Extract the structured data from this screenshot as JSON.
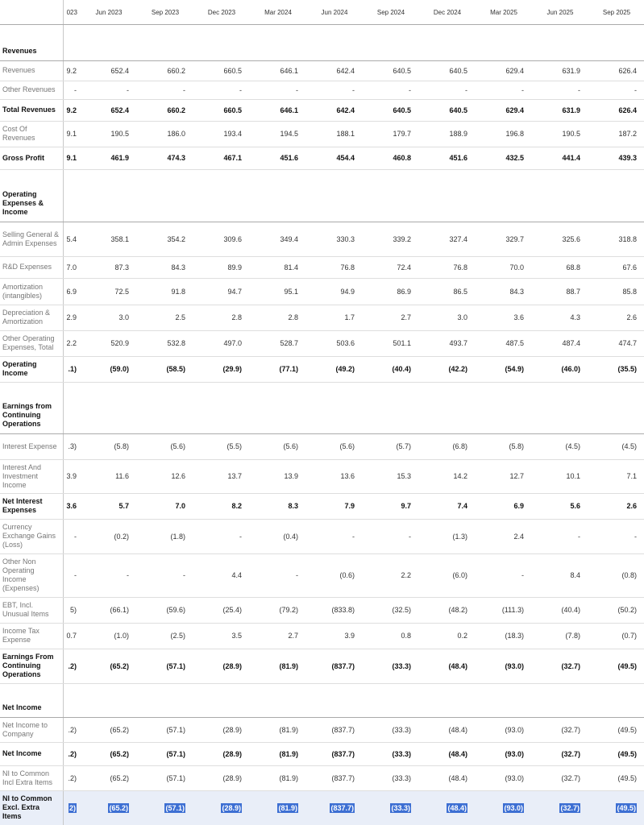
{
  "columns": [
    "023",
    "Jun 2023",
    "Sep 2023",
    "Dec 2023",
    "Mar 2024",
    "Jun 2024",
    "Sep 2024",
    "Dec 2024",
    "Mar 2025",
    "Jun 2025",
    "Sep 2025"
  ],
  "sections": [
    {
      "title": "Revenues",
      "rows": [
        {
          "label": "Revenues",
          "values": [
            "9.2",
            "652.4",
            "660.2",
            "660.5",
            "646.1",
            "642.4",
            "640.5",
            "640.5",
            "629.4",
            "631.9",
            "626.4"
          ]
        },
        {
          "label": "Other Revenues",
          "values": [
            "-",
            "-",
            "-",
            "-",
            "-",
            "-",
            "-",
            "-",
            "-",
            "-",
            "-"
          ]
        },
        {
          "label": "Total Revenues",
          "bold": true,
          "values": [
            "9.2",
            "652.4",
            "660.2",
            "660.5",
            "646.1",
            "642.4",
            "640.5",
            "640.5",
            "629.4",
            "631.9",
            "626.4"
          ]
        },
        {
          "label": "Cost Of Revenues",
          "values": [
            "9.1",
            "190.5",
            "186.0",
            "193.4",
            "194.5",
            "188.1",
            "179.7",
            "188.9",
            "196.8",
            "190.5",
            "187.2"
          ]
        },
        {
          "label": "Gross Profit",
          "bold": true,
          "values": [
            "9.1",
            "461.9",
            "474.3",
            "467.1",
            "451.6",
            "454.4",
            "460.8",
            "451.6",
            "432.5",
            "441.4",
            "439.3"
          ]
        }
      ]
    },
    {
      "title": "Operating Expenses & Income",
      "rows": [
        {
          "label": "Selling General & Admin Expenses",
          "values": [
            "5.4",
            "358.1",
            "354.2",
            "309.6",
            "349.4",
            "330.3",
            "339.2",
            "327.4",
            "329.7",
            "325.6",
            "318.8"
          ]
        },
        {
          "label": "R&D Expenses",
          "values": [
            "7.0",
            "87.3",
            "84.3",
            "89.9",
            "81.4",
            "76.8",
            "72.4",
            "76.8",
            "70.0",
            "68.8",
            "67.6"
          ]
        },
        {
          "label": "Amortization (intangibles)",
          "values": [
            "6.9",
            "72.5",
            "91.8",
            "94.7",
            "95.1",
            "94.9",
            "86.9",
            "86.5",
            "84.3",
            "88.7",
            "85.8"
          ]
        },
        {
          "label": "Depreciation & Amortization",
          "values": [
            "2.9",
            "3.0",
            "2.5",
            "2.8",
            "2.8",
            "1.7",
            "2.7",
            "3.0",
            "3.6",
            "4.3",
            "2.6"
          ]
        },
        {
          "label": "Other Operating Expenses, Total",
          "values": [
            "2.2",
            "520.9",
            "532.8",
            "497.0",
            "528.7",
            "503.6",
            "501.1",
            "493.7",
            "487.5",
            "487.4",
            "474.7"
          ]
        },
        {
          "label": "Operating Income",
          "bold": true,
          "values": [
            ".1)",
            "(59.0)",
            "(58.5)",
            "(29.9)",
            "(77.1)",
            "(49.2)",
            "(40.4)",
            "(42.2)",
            "(54.9)",
            "(46.0)",
            "(35.5)"
          ]
        }
      ]
    },
    {
      "title": "Earnings from Continuing Operations",
      "rows": [
        {
          "label": "Interest Expense",
          "values": [
            ".3)",
            "(5.8)",
            "(5.6)",
            "(5.5)",
            "(5.6)",
            "(5.6)",
            "(5.7)",
            "(6.8)",
            "(5.8)",
            "(4.5)",
            "(4.5)"
          ]
        },
        {
          "label": "Interest And Investment Income",
          "values": [
            "3.9",
            "11.6",
            "12.6",
            "13.7",
            "13.9",
            "13.6",
            "15.3",
            "14.2",
            "12.7",
            "10.1",
            "7.1"
          ]
        },
        {
          "label": "Net Interest Expenses",
          "bold": true,
          "values": [
            "3.6",
            "5.7",
            "7.0",
            "8.2",
            "8.3",
            "7.9",
            "9.7",
            "7.4",
            "6.9",
            "5.6",
            "2.6"
          ]
        },
        {
          "label": "Currency Exchange Gains (Loss)",
          "values": [
            "-",
            "(0.2)",
            "(1.8)",
            "-",
            "(0.4)",
            "-",
            "-",
            "(1.3)",
            "2.4",
            "-",
            "-"
          ]
        },
        {
          "label": "Other Non Operating Income (Expenses)",
          "values": [
            "-",
            "-",
            "-",
            "4.4",
            "-",
            "(0.6)",
            "2.2",
            "(6.0)",
            "-",
            "8.4",
            "(0.8)"
          ]
        },
        {
          "label": "EBT, Incl. Unusual Items",
          "values": [
            "5)",
            "(66.1)",
            "(59.6)",
            "(25.4)",
            "(79.2)",
            "(833.8)",
            "(32.5)",
            "(48.2)",
            "(111.3)",
            "(40.4)",
            "(50.2)"
          ]
        },
        {
          "label": "Income Tax Expense",
          "values": [
            "0.7",
            "(1.0)",
            "(2.5)",
            "3.5",
            "2.7",
            "3.9",
            "0.8",
            "0.2",
            "(18.3)",
            "(7.8)",
            "(0.7)"
          ]
        },
        {
          "label": "Earnings From Continuing Operations",
          "bold": true,
          "values": [
            ".2)",
            "(65.2)",
            "(57.1)",
            "(28.9)",
            "(81.9)",
            "(837.7)",
            "(33.3)",
            "(48.4)",
            "(93.0)",
            "(32.7)",
            "(49.5)"
          ]
        }
      ]
    },
    {
      "title": "Net Income",
      "rows": [
        {
          "label": "Net Income to Company",
          "values": [
            ".2)",
            "(65.2)",
            "(57.1)",
            "(28.9)",
            "(81.9)",
            "(837.7)",
            "(33.3)",
            "(48.4)",
            "(93.0)",
            "(32.7)",
            "(49.5)"
          ]
        },
        {
          "label": "Net Income",
          "bold": true,
          "values": [
            ".2)",
            "(65.2)",
            "(57.1)",
            "(28.9)",
            "(81.9)",
            "(837.7)",
            "(33.3)",
            "(48.4)",
            "(93.0)",
            "(32.7)",
            "(49.5)"
          ]
        },
        {
          "label": "NI to Common Incl Extra Items",
          "values": [
            ".2)",
            "(65.2)",
            "(57.1)",
            "(28.9)",
            "(81.9)",
            "(837.7)",
            "(33.3)",
            "(48.4)",
            "(93.0)",
            "(32.7)",
            "(49.5)"
          ]
        },
        {
          "label": "NI to Common Excl. Extra Items",
          "bold": true,
          "highlighted": true,
          "values": [
            "2)",
            "(65.2)",
            "(57.1)",
            "(28.9)",
            "(81.9)",
            "(837.7)",
            "(33.3)",
            "(48.4)",
            "(93.0)",
            "(32.7)",
            "(49.5)"
          ]
        }
      ]
    }
  ]
}
